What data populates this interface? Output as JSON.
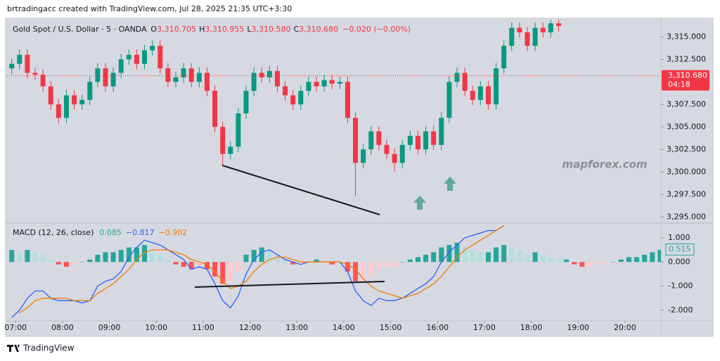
{
  "header": "brtradingacc created with TradingView.com, Jul 28, 2025 21:35 UTC+3:30",
  "watermark": "mapforex.com",
  "footer": "TradingView",
  "chart_data": [
    {
      "type": "candlestick",
      "title": "Gold Spot / U.S. Dollar · 5 · OANDA",
      "legend": [
        {
          "label": "O",
          "text": "3,310.705"
        },
        {
          "label": "H",
          "text": "3,310.955"
        },
        {
          "label": "L",
          "text": "3,310.580"
        },
        {
          "label": "C",
          "text": "3,310.680"
        }
      ],
      "change": "−0.020 (−0.00%)",
      "up_color": "#089981",
      "down_color": "#f23645",
      "x": [
        415,
        425,
        435,
        445,
        455,
        465,
        475,
        485,
        495,
        505,
        515,
        525,
        535,
        545,
        555,
        565,
        575,
        585,
        595,
        605,
        615,
        625,
        635,
        645,
        655,
        665,
        675,
        685,
        695,
        705,
        715,
        725,
        735,
        745,
        755,
        765,
        775,
        785,
        795,
        805,
        815,
        825,
        835,
        845,
        855,
        865,
        875,
        885,
        895,
        905,
        915,
        925,
        935,
        945,
        955,
        965,
        975,
        985,
        995,
        1005,
        1015,
        1025,
        1035,
        1045,
        1055,
        1065,
        1075,
        1085,
        1095,
        1105,
        1115
      ],
      "open": [
        3311.5,
        3312.0,
        3313.0,
        3311.0,
        3310.8,
        3309.5,
        3307.5,
        3306.0,
        3308.5,
        3307.5,
        3308.0,
        3310.0,
        3311.5,
        3309.5,
        3311.0,
        3312.5,
        3313.0,
        3312.0,
        3313.5,
        3314.0,
        3311.5,
        3310.0,
        3310.5,
        3311.5,
        3310.0,
        3311.0,
        3309.0,
        3305.0,
        3302.0,
        3302.8,
        3306.5,
        3309.0,
        3311.0,
        3310.5,
        3311.2,
        3309.5,
        3308.5,
        3307.5,
        3309.0,
        3310.0,
        3309.5,
        3310.2,
        3309.8,
        3310.0,
        3306.0,
        3301.0,
        3302.5,
        3304.5,
        3303.0,
        3302.0,
        3301.0,
        3303.0,
        3304.0,
        3302.5,
        3304.5,
        3303.0,
        3306.0,
        3310.0,
        3311.0,
        3309.0,
        3308.0,
        3309.5,
        3307.5,
        3311.5,
        3314.0,
        3316.0,
        3315.5,
        3314.0,
        3316.0,
        3315.5,
        3316.5
      ],
      "high": [
        3312.6,
        3313.6,
        3313.6,
        3311.6,
        3311.4,
        3310.1,
        3308.1,
        3309.1,
        3309.1,
        3308.6,
        3310.6,
        3312.1,
        3312.1,
        3311.6,
        3313.1,
        3313.6,
        3313.6,
        3314.1,
        3314.6,
        3314.6,
        3312.1,
        3311.1,
        3312.1,
        3312.1,
        3311.6,
        3311.6,
        3309.6,
        3305.6,
        3303.4,
        3307.1,
        3309.6,
        3311.6,
        3311.6,
        3311.8,
        3311.8,
        3310.1,
        3309.1,
        3309.6,
        3310.6,
        3310.6,
        3310.8,
        3310.8,
        3310.6,
        3310.6,
        3306.6,
        3303.1,
        3305.1,
        3305.1,
        3303.6,
        3302.6,
        3303.6,
        3304.6,
        3304.6,
        3305.1,
        3305.1,
        3306.6,
        3310.6,
        3311.6,
        3311.6,
        3309.6,
        3310.1,
        3310.1,
        3312.1,
        3314.6,
        3316.6,
        3316.6,
        3316.1,
        3316.6,
        3316.6,
        3317.1,
        3317.1
      ],
      "low": [
        3310.9,
        3311.4,
        3310.4,
        3310.2,
        3308.9,
        3306.9,
        3305.4,
        3305.4,
        3306.9,
        3306.9,
        3307.4,
        3309.4,
        3308.9,
        3308.9,
        3310.4,
        3311.9,
        3311.4,
        3311.4,
        3312.9,
        3310.9,
        3309.4,
        3309.4,
        3309.9,
        3309.4,
        3309.4,
        3308.4,
        3304.4,
        3300.8,
        3301.4,
        3302.2,
        3305.9,
        3308.4,
        3309.9,
        3309.9,
        3308.9,
        3307.9,
        3306.9,
        3306.9,
        3308.4,
        3308.9,
        3308.9,
        3309.2,
        3309.2,
        3305.4,
        3297.3,
        3300.4,
        3301.9,
        3302.4,
        3301.4,
        3300.0,
        3300.4,
        3302.4,
        3301.9,
        3301.9,
        3302.4,
        3302.4,
        3305.4,
        3309.4,
        3308.4,
        3307.4,
        3307.4,
        3306.9,
        3306.9,
        3310.9,
        3313.4,
        3314.9,
        3313.4,
        3313.4,
        3314.9,
        3314.9,
        3315.6
      ],
      "close": [
        3312.0,
        3313.0,
        3311.0,
        3310.8,
        3309.5,
        3307.5,
        3306.0,
        3308.5,
        3307.5,
        3308.0,
        3310.0,
        3311.5,
        3309.5,
        3311.0,
        3312.5,
        3313.0,
        3312.0,
        3313.5,
        3314.0,
        3311.5,
        3310.0,
        3310.5,
        3311.5,
        3310.0,
        3311.0,
        3309.0,
        3305.0,
        3302.0,
        3302.8,
        3306.5,
        3309.0,
        3311.0,
        3310.5,
        3311.2,
        3309.5,
        3308.5,
        3307.5,
        3309.0,
        3310.0,
        3309.5,
        3310.2,
        3309.8,
        3310.0,
        3306.0,
        3301.0,
        3302.5,
        3304.5,
        3303.0,
        3302.0,
        3301.0,
        3303.0,
        3304.0,
        3302.5,
        3304.5,
        3303.0,
        3306.0,
        3310.0,
        3311.0,
        3309.0,
        3308.0,
        3309.5,
        3307.5,
        3311.5,
        3314.0,
        3316.0,
        3315.5,
        3314.0,
        3316.0,
        3315.5,
        3316.5,
        3316.2
      ],
      "xlim": [
        409,
        1246
      ],
      "ylim": [
        3294.4,
        3316.9
      ],
      "yticks": [
        {
          "value": 3295,
          "label": "3,295.000"
        },
        {
          "value": 3297.5,
          "label": "3,297.500"
        },
        {
          "value": 3300,
          "label": "3,300.000"
        },
        {
          "value": 3302.5,
          "label": "3,302.500"
        },
        {
          "value": 3305,
          "label": "3,305.000"
        },
        {
          "value": 3307.5,
          "label": "3,307.500"
        },
        {
          "value": 3310,
          "label": "3,310.000"
        },
        {
          "value": 3312.5,
          "label": "3,312.500"
        },
        {
          "value": 3315,
          "label": "3,315.000"
        }
      ],
      "last_price": {
        "value": 3310.68,
        "label": "3,310.680"
      },
      "countdown": "04:18"
    },
    {
      "type": "macd",
      "title": "MACD (12, 26, close)",
      "x": [
        415,
        425,
        435,
        445,
        455,
        465,
        475,
        485,
        495,
        505,
        515,
        525,
        535,
        545,
        555,
        565,
        575,
        585,
        595,
        605,
        615,
        625,
        635,
        645,
        655,
        665,
        675,
        685,
        695,
        705,
        715,
        725,
        735,
        745,
        755,
        765,
        775,
        785,
        795,
        805,
        815,
        825,
        835,
        845,
        855,
        865,
        875,
        885,
        895,
        905,
        915,
        925,
        935,
        945,
        955,
        965,
        975,
        985,
        995,
        1005,
        1015,
        1025,
        1035,
        1045,
        1055,
        1065,
        1075,
        1085,
        1095,
        1105,
        1115,
        1125,
        1135,
        1145,
        1155,
        1165,
        1175,
        1185,
        1195,
        1205,
        1215,
        1225,
        1235,
        1245
      ],
      "histogram": {
        "legend_text": "0.085",
        "colors": {
          "positive_rising": "#26a69a",
          "positive_falling": "#b2dfdb",
          "negative_falling": "#ff5252",
          "negative_rising": "#ffcdd2"
        },
        "values": [
          0.5,
          0.4,
          0.5,
          0.4,
          0.3,
          0.1,
          -0.1,
          -0.2,
          -0.1,
          0.0,
          0.1,
          0.3,
          0.4,
          0.4,
          0.5,
          0.6,
          0.6,
          0.7,
          0.4,
          0.3,
          0.1,
          -0.1,
          -0.2,
          -0.3,
          -0.2,
          -0.3,
          -0.6,
          -0.9,
          -0.8,
          -0.4,
          0.3,
          0.5,
          0.6,
          0.5,
          0.3,
          0.1,
          -0.1,
          -0.1,
          0.0,
          0.1,
          0.0,
          -0.1,
          0.0,
          -0.4,
          -0.8,
          -0.8,
          -0.6,
          -0.3,
          -0.2,
          -0.2,
          0.0,
          0.1,
          0.2,
          0.3,
          0.4,
          0.6,
          0.7,
          0.8,
          0.6,
          0.5,
          0.4,
          0.4,
          0.6,
          0.7,
          0.6,
          0.5,
          0.3,
          0.4,
          0.3,
          0.2,
          0.1,
          0.1,
          -0.1,
          -0.2,
          -0.2,
          -0.1,
          -0.1,
          0.0,
          0.1,
          0.2,
          0.2,
          0.3,
          0.4,
          0.5
        ]
      },
      "series": [
        {
          "legend_text": "−0.817",
          "color": "#2962ff",
          "values": [
            -2.3,
            -2.0,
            -1.5,
            -1.2,
            -1.2,
            -1.5,
            -1.6,
            -1.6,
            -1.6,
            -1.7,
            -1.6,
            -1.0,
            -0.8,
            -0.7,
            -0.4,
            0.2,
            0.6,
            0.9,
            0.8,
            0.7,
            0.5,
            0.3,
            0.1,
            -0.3,
            -0.2,
            -0.3,
            -0.9,
            -1.6,
            -1.9,
            -1.4,
            -0.5,
            0.1,
            0.4,
            0.5,
            0.3,
            0.1,
            0.0,
            -0.1,
            0.0,
            0.0,
            0.0,
            0.0,
            0.0,
            -0.4,
            -1.2,
            -1.6,
            -1.8,
            -1.5,
            -1.6,
            -1.6,
            -1.5,
            -1.3,
            -1.1,
            -0.9,
            -0.6,
            0.0,
            0.4,
            0.7,
            1.0,
            1.1,
            1.2,
            1.3,
            1.3,
            1.5,
            null,
            null,
            null,
            null,
            null,
            null,
            null,
            null,
            null,
            null,
            null,
            null,
            null,
            null,
            null,
            null,
            null,
            null,
            null,
            null
          ]
        },
        {
          "legend_text": "−0.902",
          "color": "#f57c00",
          "values": [
            null,
            -2.1,
            -1.9,
            -1.6,
            -1.5,
            -1.5,
            -1.5,
            -1.5,
            -1.6,
            -1.6,
            -1.6,
            -1.3,
            -1.1,
            -0.9,
            -0.6,
            -0.3,
            0.1,
            0.4,
            0.5,
            0.5,
            0.5,
            0.4,
            0.3,
            0.1,
            0.0,
            -0.1,
            -0.4,
            -0.8,
            -1.1,
            -1.0,
            -0.8,
            -0.4,
            -0.1,
            0.1,
            0.2,
            0.2,
            0.1,
            0.0,
            0.0,
            0.0,
            0.0,
            0.0,
            0.0,
            -0.1,
            -0.3,
            -0.7,
            -1.0,
            -1.2,
            -1.3,
            -1.4,
            -1.5,
            -1.4,
            -1.3,
            -1.1,
            -0.9,
            -0.6,
            -0.2,
            0.2,
            0.5,
            0.7,
            0.9,
            1.1,
            1.3,
            1.5,
            null,
            null,
            null,
            null,
            null,
            null,
            null,
            null,
            null,
            null,
            null,
            null,
            null,
            null,
            null,
            null,
            null,
            null,
            null,
            null
          ]
        }
      ],
      "value_tag": {
        "value": 0.515,
        "label": "0.515"
      },
      "xlim": [
        409,
        1246
      ],
      "xticks": [
        {
          "value": 420,
          "label": "07:00"
        },
        {
          "value": 480,
          "label": "08:00"
        },
        {
          "value": 540,
          "label": "09:00"
        },
        {
          "value": 600,
          "label": "10:00"
        },
        {
          "value": 660,
          "label": "11:00"
        },
        {
          "value": 720,
          "label": "12:00"
        },
        {
          "value": 780,
          "label": "13:00"
        },
        {
          "value": 840,
          "label": "14:00"
        },
        {
          "value": 900,
          "label": "15:00"
        },
        {
          "value": 960,
          "label": "16:00"
        },
        {
          "value": 1020,
          "label": "17:00"
        },
        {
          "value": 1080,
          "label": "18:00"
        },
        {
          "value": 1140,
          "label": "19:00"
        },
        {
          "value": 1200,
          "label": "20:00"
        }
      ],
      "ylim": [
        -2.41,
        1.58
      ],
      "yticks": [
        {
          "value": 1,
          "label": "1.000"
        },
        {
          "value": 0,
          "label": "0.000"
        },
        {
          "value": -1,
          "label": "-1.000"
        },
        {
          "value": -2,
          "label": "-2.000"
        }
      ]
    }
  ]
}
